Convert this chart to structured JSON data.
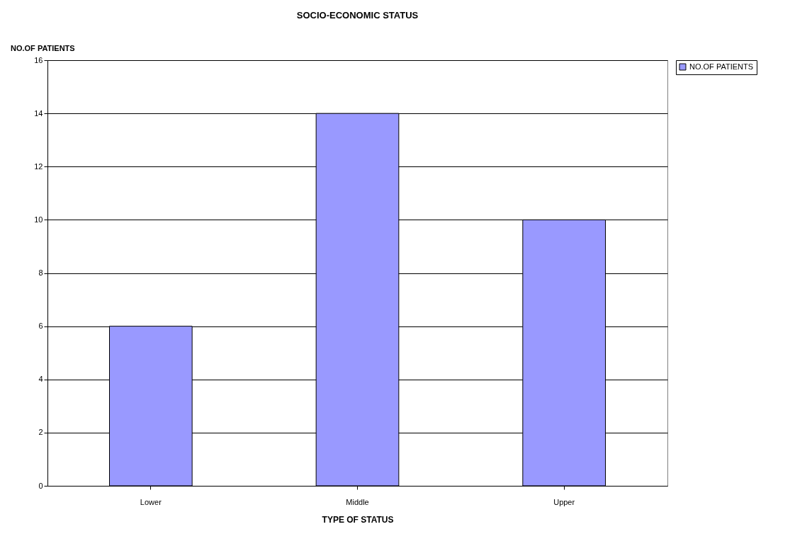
{
  "chart_data": {
    "type": "bar",
    "title": "SOCIO-ECONOMIC STATUS",
    "xlabel": "TYPE OF STATUS",
    "ylabel": "NO.OF PATIENTS",
    "categories": [
      "Lower",
      "Middle",
      "Upper"
    ],
    "series": [
      {
        "name": "NO.OF PATIENTS",
        "color": "#9999ff",
        "values": [
          6,
          14,
          10
        ]
      }
    ],
    "ylim": [
      0,
      16
    ],
    "yticks": [
      0,
      2,
      4,
      6,
      8,
      10,
      12,
      14,
      16
    ],
    "grid": "y",
    "legend": "right"
  }
}
